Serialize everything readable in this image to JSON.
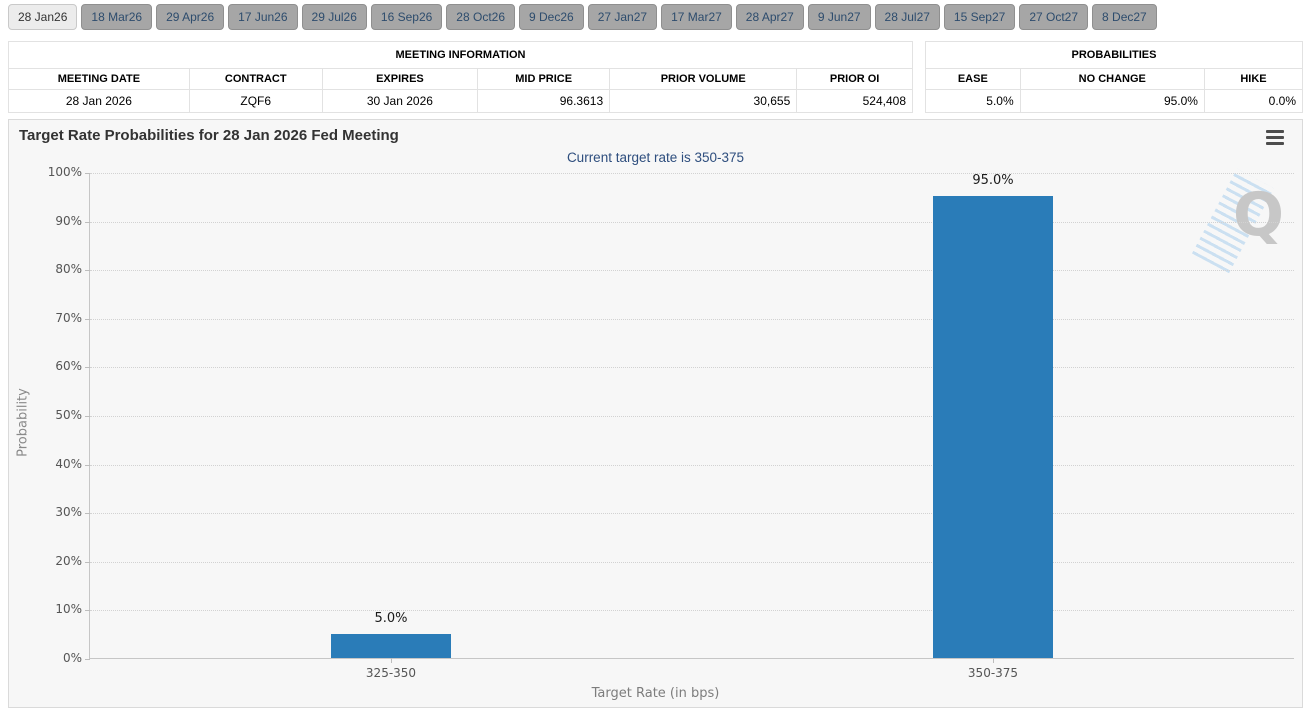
{
  "tabs": {
    "items": [
      {
        "label": "28 Jan26",
        "active": true
      },
      {
        "label": "18 Mar26",
        "active": false
      },
      {
        "label": "29 Apr26",
        "active": false
      },
      {
        "label": "17 Jun26",
        "active": false
      },
      {
        "label": "29 Jul26",
        "active": false
      },
      {
        "label": "16 Sep26",
        "active": false
      },
      {
        "label": "28 Oct26",
        "active": false
      },
      {
        "label": "9 Dec26",
        "active": false
      },
      {
        "label": "27 Jan27",
        "active": false
      },
      {
        "label": "17 Mar27",
        "active": false
      },
      {
        "label": "28 Apr27",
        "active": false
      },
      {
        "label": "9 Jun27",
        "active": false
      },
      {
        "label": "28 Jul27",
        "active": false
      },
      {
        "label": "15 Sep27",
        "active": false
      },
      {
        "label": "27 Oct27",
        "active": false
      },
      {
        "label": "8 Dec27",
        "active": false
      }
    ]
  },
  "meeting_info": {
    "title": "MEETING INFORMATION",
    "columns": [
      "MEETING DATE",
      "CONTRACT",
      "EXPIRES",
      "MID PRICE",
      "PRIOR VOLUME",
      "PRIOR OI"
    ],
    "row": [
      "28 Jan 2026",
      "ZQF6",
      "30 Jan 2026",
      "96.3613",
      "30,655",
      "524,408"
    ]
  },
  "probabilities": {
    "title": "PROBABILITIES",
    "columns": [
      "EASE",
      "NO CHANGE",
      "HIKE"
    ],
    "row": [
      "5.0%",
      "95.0%",
      "0.0%"
    ]
  },
  "chart": {
    "menu_icon": "hamburger-icon",
    "watermark_letter": "Q"
  },
  "chart_data": {
    "type": "bar",
    "title": "Target Rate Probabilities for 28 Jan 2026 Fed Meeting",
    "subtitle": "Current target rate is 350-375",
    "categories": [
      "325-350",
      "350-375"
    ],
    "values": [
      5.0,
      95.0
    ],
    "value_labels": [
      "5.0%",
      "95.0%"
    ],
    "xlabel": "Target Rate (in bps)",
    "ylabel": "Probability",
    "ylim": [
      0,
      100
    ],
    "ytick_labels": [
      "0%",
      "10%",
      "20%",
      "30%",
      "40%",
      "50%",
      "60%",
      "70%",
      "80%",
      "90%",
      "100%"
    ],
    "bar_color": "#2a7cb8",
    "grid": "dotted-horizontal",
    "legend": false
  }
}
